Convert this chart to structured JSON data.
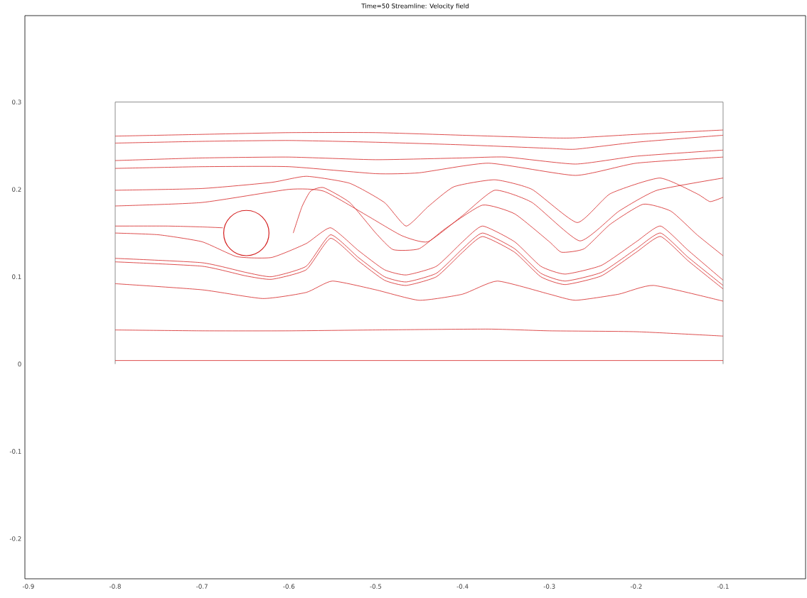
{
  "chart_data": {
    "type": "line",
    "title": "Time=50    Streamline: Velocity field",
    "marker": "none",
    "line_style": "solid",
    "xlim": [
      -0.904,
      -0.005
    ],
    "ylim": [
      -0.246,
      0.399
    ],
    "xticks": [
      -0.9,
      -0.8,
      -0.7,
      -0.6,
      -0.5,
      -0.4,
      -0.3,
      -0.2,
      -0.1
    ],
    "yticks": [
      -0.2,
      -0.1,
      0,
      0.1,
      0.2,
      0.3
    ],
    "series": [
      {
        "color": "#707070",
        "x": [
          -0.8,
          -0.1
        ],
        "values": [
          0.3,
          0.3
        ]
      },
      {
        "color": "#707070",
        "x": [
          -0.8,
          -0.8
        ],
        "values": [
          0,
          0.3
        ]
      },
      {
        "color": "#707070",
        "x": [
          -0.1,
          -0.1
        ],
        "values": [
          0,
          0.3
        ]
      },
      {
        "color": "#d42020",
        "x": [
          -0.8,
          -0.7,
          -0.6,
          -0.5,
          -0.4,
          -0.3,
          -0.27,
          -0.2,
          -0.1
        ],
        "values": [
          0.261,
          0.263,
          0.265,
          0.265,
          0.262,
          0.259,
          0.259,
          0.263,
          0.268
        ]
      },
      {
        "color": "#d42020",
        "x": [
          -0.8,
          -0.7,
          -0.6,
          -0.5,
          -0.4,
          -0.3,
          -0.27,
          -0.2,
          -0.1
        ],
        "values": [
          0.253,
          0.255,
          0.256,
          0.254,
          0.251,
          0.247,
          0.246,
          0.254,
          0.262
        ]
      },
      {
        "color": "#d42020",
        "x": [
          -0.8,
          -0.7,
          -0.6,
          -0.5,
          -0.4,
          -0.35,
          -0.27,
          -0.2,
          -0.1
        ],
        "values": [
          0.233,
          0.236,
          0.237,
          0.234,
          0.236,
          0.237,
          0.229,
          0.238,
          0.245
        ]
      },
      {
        "color": "#d42020",
        "x": [
          -0.8,
          -0.7,
          -0.6,
          -0.5,
          -0.45,
          -0.37,
          -0.27,
          -0.2,
          -0.1
        ],
        "values": [
          0.224,
          0.226,
          0.226,
          0.218,
          0.219,
          0.23,
          0.216,
          0.23,
          0.237
        ]
      },
      {
        "color": "#d42020",
        "x": [
          -0.8,
          -0.7,
          -0.62,
          -0.58,
          -0.53,
          -0.49,
          -0.465,
          -0.44,
          -0.41,
          -0.363,
          -0.32,
          -0.268,
          -0.23,
          -0.173,
          -0.13,
          -0.115,
          -0.1
        ],
        "values": [
          0.199,
          0.201,
          0.208,
          0.215,
          0.207,
          0.185,
          0.158,
          0.18,
          0.203,
          0.211,
          0.2,
          0.162,
          0.195,
          0.213,
          0.195,
          0.186,
          0.191
        ]
      },
      {
        "color": "#d42020",
        "x": [
          -0.8,
          -0.7,
          -0.6,
          -0.56,
          -0.51,
          -0.47,
          -0.44,
          -0.4,
          -0.363,
          -0.32,
          -0.265,
          -0.22,
          -0.176,
          -0.1
        ],
        "values": [
          0.181,
          0.185,
          0.2,
          0.198,
          0.17,
          0.147,
          0.14,
          0.17,
          0.199,
          0.185,
          0.141,
          0.175,
          0.199,
          0.213
        ]
      },
      {
        "color": "#d42020",
        "x": [
          -0.8,
          -0.74,
          -0.7,
          -0.676
        ],
        "values": [
          0.158,
          0.158,
          0.157,
          0.156
        ]
      },
      {
        "color": "#d42020",
        "x": [
          -0.595,
          -0.585,
          -0.575,
          -0.56,
          -0.53,
          -0.5,
          -0.48,
          -0.45,
          -0.42,
          -0.377,
          -0.34,
          -0.3,
          -0.286,
          -0.26,
          -0.23,
          -0.192,
          -0.16,
          -0.13,
          -0.1
        ],
        "values": [
          0.15,
          0.18,
          0.198,
          0.202,
          0.185,
          0.15,
          0.131,
          0.132,
          0.155,
          0.182,
          0.172,
          0.14,
          0.128,
          0.132,
          0.16,
          0.183,
          0.175,
          0.148,
          0.124
        ]
      },
      {
        "color": "#d42020",
        "x": [
          -0.8,
          -0.75,
          -0.7,
          -0.66,
          -0.62,
          -0.58,
          -0.552,
          -0.52,
          -0.49,
          -0.465,
          -0.43,
          -0.4,
          -0.377,
          -0.34,
          -0.31,
          -0.282,
          -0.24,
          -0.2,
          -0.172,
          -0.14,
          -0.1
        ],
        "values": [
          0.15,
          0.148,
          0.14,
          0.123,
          0.122,
          0.138,
          0.156,
          0.13,
          0.108,
          0.102,
          0.112,
          0.14,
          0.158,
          0.14,
          0.112,
          0.103,
          0.113,
          0.14,
          0.158,
          0.13,
          0.096
        ]
      },
      {
        "color": "#d42020",
        "x": [
          -0.8,
          -0.7,
          -0.65,
          -0.62,
          -0.58,
          -0.552,
          -0.52,
          -0.49,
          -0.465,
          -0.43,
          -0.4,
          -0.377,
          -0.34,
          -0.31,
          -0.282,
          -0.24,
          -0.2,
          -0.172,
          -0.14,
          -0.1
        ],
        "values": [
          0.121,
          0.116,
          0.105,
          0.1,
          0.112,
          0.148,
          0.122,
          0.1,
          0.094,
          0.104,
          0.132,
          0.15,
          0.132,
          0.104,
          0.095,
          0.105,
          0.132,
          0.15,
          0.122,
          0.09
        ]
      },
      {
        "color": "#d42020",
        "x": [
          -0.8,
          -0.7,
          -0.65,
          -0.62,
          -0.58,
          -0.552,
          -0.52,
          -0.49,
          -0.465,
          -0.43,
          -0.4,
          -0.377,
          -0.34,
          -0.31,
          -0.282,
          -0.24,
          -0.2,
          -0.172,
          -0.14,
          -0.1
        ],
        "values": [
          0.117,
          0.112,
          0.101,
          0.097,
          0.108,
          0.144,
          0.118,
          0.096,
          0.09,
          0.1,
          0.128,
          0.146,
          0.128,
          0.1,
          0.091,
          0.101,
          0.128,
          0.146,
          0.118,
          0.086
        ]
      },
      {
        "color": "#d42020",
        "x": [
          -0.8,
          -0.7,
          -0.63,
          -0.58,
          -0.55,
          -0.5,
          -0.45,
          -0.4,
          -0.36,
          -0.3,
          -0.27,
          -0.22,
          -0.18,
          -0.1
        ],
        "values": [
          0.092,
          0.085,
          0.075,
          0.082,
          0.095,
          0.085,
          0.073,
          0.08,
          0.095,
          0.08,
          0.073,
          0.08,
          0.09,
          0.072
        ]
      },
      {
        "color": "#d42020",
        "x": [
          -0.8,
          -0.7,
          -0.6,
          -0.5,
          -0.37,
          -0.3,
          -0.2,
          -0.1
        ],
        "values": [
          0.039,
          0.038,
          0.038,
          0.039,
          0.04,
          0.038,
          0.037,
          0.032
        ]
      },
      {
        "color": "#d42020",
        "x": [
          -0.8,
          -0.1
        ],
        "values": [
          0.004,
          0.004
        ]
      }
    ]
  }
}
